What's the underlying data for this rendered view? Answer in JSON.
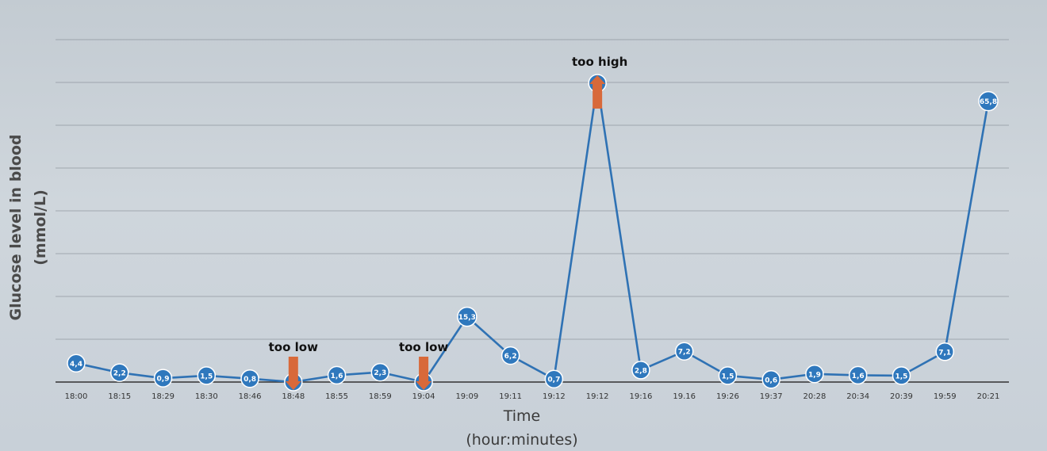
{
  "chart_data": {
    "type": "line",
    "xlabel": "Time",
    "xlabel_sub": "(hour:minutes)",
    "ylabel": "Glucose level in blood",
    "ylabel_sub": "(mmol/L)",
    "ylim": [
      0,
      70
    ],
    "grid": true,
    "series_color": "#2f72b4",
    "marker_color": "#2f78bd",
    "annotation_color": "#d8693a",
    "x": [
      "18:00",
      "18:15",
      "18:29",
      "18:30",
      "18:46",
      "18:48",
      "18:55",
      "18:59",
      "19:04",
      "19:09",
      "19:11",
      "19:12",
      "19:12",
      "19:16",
      "19.16",
      "19:26",
      "19:37",
      "20:28",
      "20:34",
      "20:39",
      "19:59",
      "20:21"
    ],
    "values": [
      4.4,
      2.2,
      0.9,
      1.5,
      0.8,
      0,
      1.6,
      2.3,
      0,
      15.3,
      6.2,
      0.7,
      70,
      2.8,
      7.2,
      1.5,
      0.6,
      1.9,
      1.6,
      1.5,
      7.1,
      65.8
    ],
    "point_labels": [
      "4,4",
      "2,2",
      "0,9",
      "1,5",
      "0,8",
      "",
      "1,6",
      "2,3",
      "",
      "15,3",
      "6,2",
      "0,7",
      "",
      "2,8",
      "7,2",
      "1,5",
      "0,6",
      "1,9",
      "1,6",
      "1,5",
      "7,1",
      "65,8"
    ],
    "annotations": [
      {
        "text": "too low",
        "index": 5,
        "direction": "down"
      },
      {
        "text": "too low",
        "index": 8,
        "direction": "down"
      },
      {
        "text": "too high",
        "index": 12,
        "direction": "up"
      }
    ]
  }
}
